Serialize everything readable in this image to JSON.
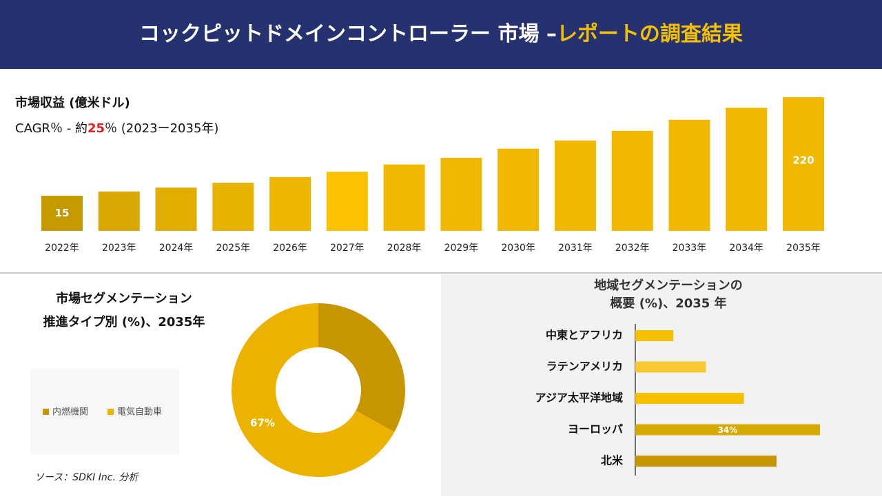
{
  "header": {
    "title_main": "コックピットドメインコントローラー 市場 –",
    "title_accent": "レポートの調査結果"
  },
  "chart_data": [
    {
      "type": "bar",
      "title": "市場収益 (億米ドル)",
      "cagr": {
        "prefix": "CAGR％ - 約",
        "value": 25,
        "suffix": "％ (2023ー2035年)"
      },
      "categories": [
        "2022年",
        "2023年",
        "2024年",
        "2025年",
        "2026年",
        "2027年",
        "2028年",
        "2029年",
        "2030年",
        "2031年",
        "2032年",
        "2033年",
        "2034年",
        "2035年"
      ],
      "values": [
        15,
        24,
        32,
        42,
        54,
        65,
        80,
        94,
        113,
        130,
        150,
        173,
        198,
        220
      ],
      "value_labels": [
        "15",
        null,
        null,
        null,
        null,
        null,
        null,
        null,
        null,
        null,
        null,
        null,
        null,
        "220"
      ],
      "colors": [
        "#c49a00",
        "#d8a800",
        "#e0ad00",
        "#e8b200",
        "#efb600",
        "#fcc200",
        "#f0b800",
        "#f0b800",
        "#f0b800",
        "#f0b800",
        "#f0b800",
        "#f0b800",
        "#f0b800",
        "#f0b800"
      ]
    },
    {
      "type": "donut",
      "title": [
        "市場セグメンテーション",
        "推進タイプ別 (%)、2035年"
      ],
      "categories": [
        "内燃機関",
        "電気自動車"
      ],
      "values": [
        33,
        67
      ],
      "value_labels": [
        null,
        "67%"
      ],
      "colors": [
        "#c69500",
        "#ebb300"
      ]
    },
    {
      "type": "hbar",
      "title": [
        "地域セグメンテーションの",
        "概要 (%)、2035 年"
      ],
      "categories": [
        "中東とアフリカ",
        "ラテンアメリカ",
        "アジア太平洋地域",
        "ヨーロッパ",
        "北米"
      ],
      "values": [
        7,
        13,
        20,
        34,
        26
      ],
      "value_labels": [
        null,
        null,
        null,
        "34%",
        null
      ],
      "colors": [
        "#f5c000",
        "#f8c832",
        "#f5c000",
        "#d6a900",
        "#c69500"
      ]
    }
  ],
  "source": "ソース：SDKI Inc. 分析"
}
